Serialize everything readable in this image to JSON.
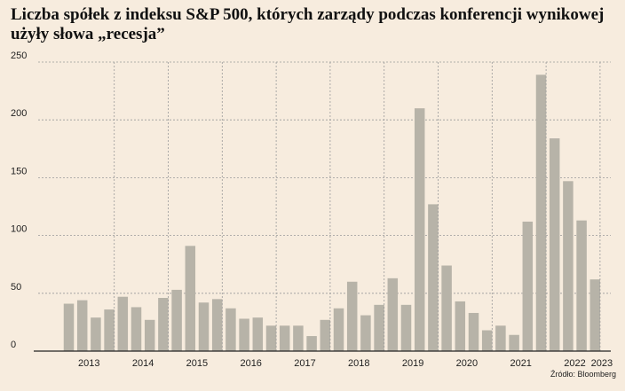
{
  "title": "Liczba spółek z indeksu S&P 500, których zarządy podczas konferencji wynikowej użyły słowa „recesja”",
  "source": "Źródło: Bloomberg",
  "colors": {
    "background": "#f7ecde",
    "bar": "#b7b3a8",
    "grid": "#9a9a9a",
    "axis": "#222222"
  },
  "chart_data": {
    "type": "bar",
    "title": "Liczba spółek z indeksu S&P 500, których zarządy podczas konferencji wynikowej użyły słowa „recesja”",
    "xlabel": "",
    "ylabel": "",
    "ylim": [
      0,
      250
    ],
    "yticks": [
      0,
      50,
      100,
      150,
      200,
      250
    ],
    "grid": true,
    "x_tick_labels": [
      "2013",
      "2014",
      "2015",
      "2016",
      "2017",
      "2018",
      "2019",
      "2020",
      "2021",
      "2022",
      "2023"
    ],
    "values": [
      41,
      44,
      29,
      36,
      47,
      38,
      27,
      46,
      53,
      91,
      42,
      45,
      37,
      28,
      29,
      22,
      22,
      22,
      13,
      27,
      37,
      60,
      31,
      40,
      63,
      40,
      210,
      127,
      74,
      43,
      33,
      18,
      22,
      14,
      112,
      239,
      184,
      147,
      113,
      62
    ]
  }
}
